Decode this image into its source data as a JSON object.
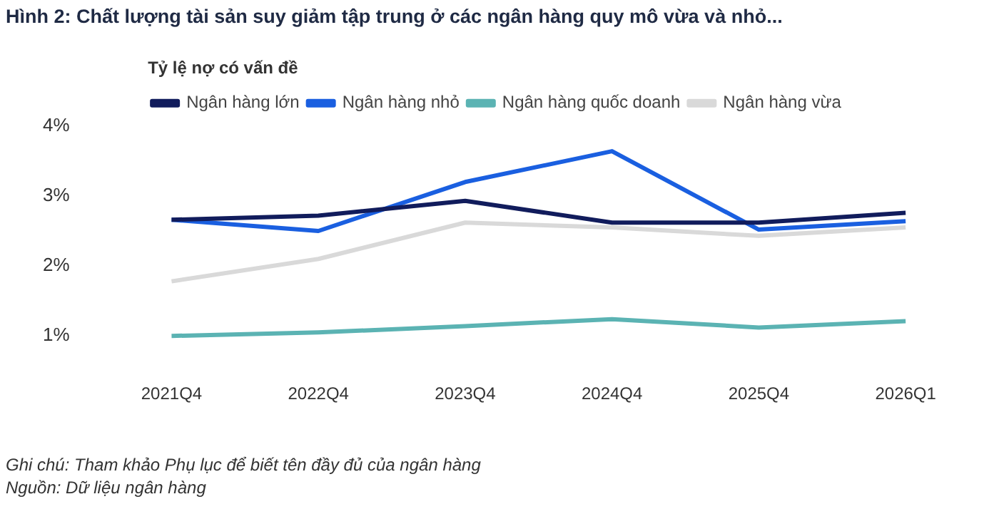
{
  "chart_data": {
    "type": "line",
    "title": "Hình 2: Chất lượng tài sản suy giảm tập trung ở các ngân hàng quy mô vừa và nhỏ...",
    "legend_title": "Tỷ lệ nợ có vấn đề",
    "legend": "top",
    "grid": false,
    "marker": "none",
    "line_style": "solid",
    "categories": [
      "2021Q4",
      "2022Q4",
      "2023Q4",
      "2024Q4",
      "2025Q4",
      "2026Q1"
    ],
    "ylim": [
      1,
      4
    ],
    "yticks": [
      {
        "value": 1,
        "label": "1%"
      },
      {
        "value": 2,
        "label": "2%"
      },
      {
        "value": 3,
        "label": "3%"
      },
      {
        "value": 4,
        "label": "4%"
      }
    ],
    "series": [
      {
        "name": "Ngân hàng lớn",
        "color": "#111c5c",
        "values": [
          2.66,
          2.72,
          2.93,
          2.62,
          2.62,
          2.76
        ]
      },
      {
        "name": "Ngân hàng nhỏ",
        "color": "#1a5fe0",
        "values": [
          2.66,
          2.5,
          3.2,
          3.64,
          2.52,
          2.64
        ]
      },
      {
        "name": "Ngân hàng quốc doanh",
        "color": "#5bb3b3",
        "values": [
          1,
          1.05,
          1.14,
          1.24,
          1.12,
          1.21
        ]
      },
      {
        "name": "Ngân hàng vừa",
        "color": "#d9d9d9",
        "values": [
          1.78,
          2.1,
          2.62,
          2.55,
          2.43,
          2.55
        ]
      }
    ],
    "annotations": [
      "Ghi chú: Tham khảo Phụ lục để biết tên đầy đủ của ngân hàng",
      "Nguồn: Dữ liệu ngân hàng"
    ]
  }
}
